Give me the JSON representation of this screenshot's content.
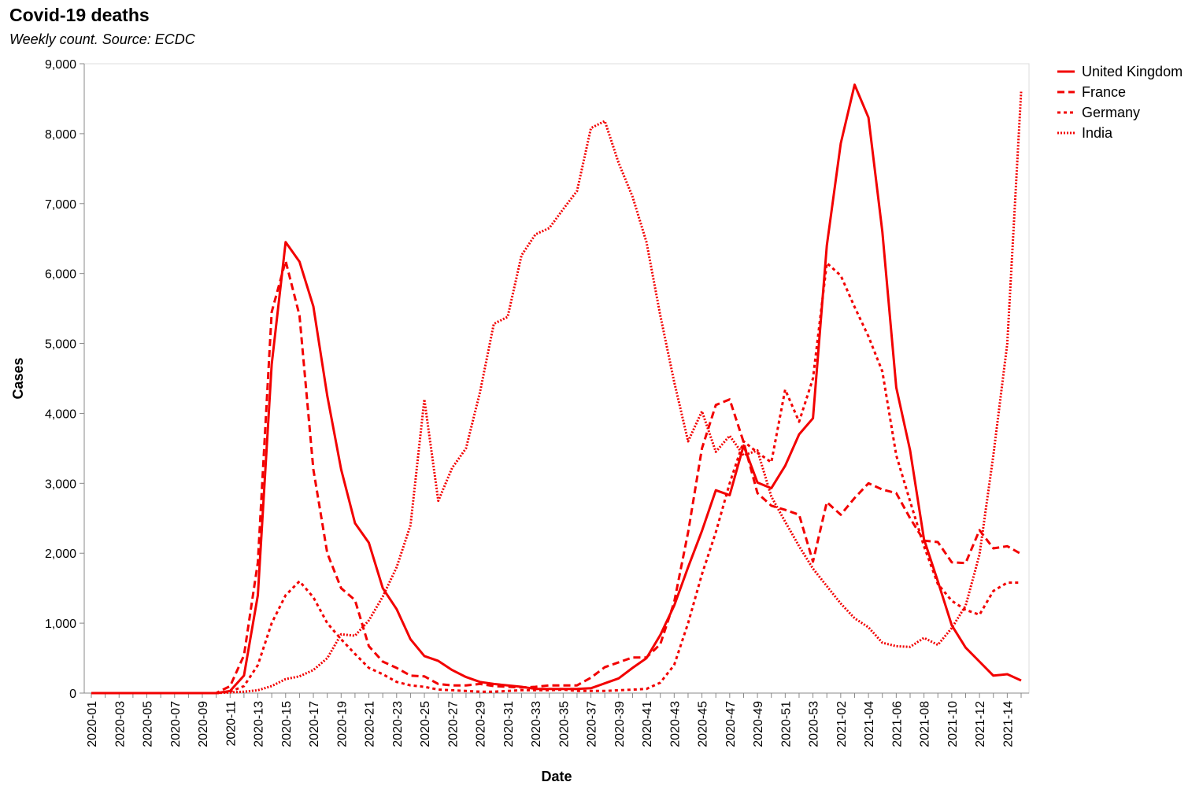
{
  "chart_data": {
    "type": "line",
    "title": "Covid-19 deaths",
    "subtitle": "Weekly count. Source: ECDC",
    "xlabel": "Date",
    "ylabel": "Cases",
    "ylim": [
      0,
      9000
    ],
    "yticks": [
      0,
      1000,
      2000,
      3000,
      4000,
      5000,
      6000,
      7000,
      8000,
      9000
    ],
    "ytick_labels": [
      "0",
      "1,000",
      "2,000",
      "3,000",
      "4,000",
      "5,000",
      "6,000",
      "7,000",
      "8,000",
      "9,000"
    ],
    "grid": false,
    "legend_position": "top-right",
    "line_color": "#f20000",
    "x": [
      "2020-01",
      "2020-02",
      "2020-03",
      "2020-04",
      "2020-05",
      "2020-06",
      "2020-07",
      "2020-08",
      "2020-09",
      "2020-10",
      "2020-11",
      "2020-12",
      "2020-13",
      "2020-14",
      "2020-15",
      "2020-16",
      "2020-17",
      "2020-18",
      "2020-19",
      "2020-20",
      "2020-21",
      "2020-22",
      "2020-23",
      "2020-24",
      "2020-25",
      "2020-26",
      "2020-27",
      "2020-28",
      "2020-29",
      "2020-30",
      "2020-31",
      "2020-32",
      "2020-33",
      "2020-34",
      "2020-35",
      "2020-36",
      "2020-37",
      "2020-38",
      "2020-39",
      "2020-40",
      "2020-41",
      "2020-42",
      "2020-43",
      "2020-44",
      "2020-45",
      "2020-46",
      "2020-47",
      "2020-48",
      "2020-49",
      "2020-50",
      "2020-51",
      "2020-52",
      "2020-53",
      "2021-01",
      "2021-02",
      "2021-03",
      "2021-04",
      "2021-05",
      "2021-06",
      "2021-07",
      "2021-08",
      "2021-09",
      "2021-10",
      "2021-11",
      "2021-12",
      "2021-13",
      "2021-14",
      "2021-15"
    ],
    "x_tick_labels": [
      "2020-01",
      "2020-03",
      "2020-05",
      "2020-07",
      "2020-09",
      "2020-11",
      "2020-13",
      "2020-15",
      "2020-17",
      "2020-19",
      "2020-21",
      "2020-23",
      "2020-25",
      "2020-27",
      "2020-29",
      "2020-31",
      "2020-33",
      "2020-35",
      "2020-37",
      "2020-39",
      "2020-41",
      "2020-43",
      "2020-45",
      "2020-47",
      "2020-49",
      "2020-51",
      "2020-53",
      "2021-02",
      "2021-04",
      "2021-06",
      "2021-08",
      "2021-10",
      "2021-12",
      "2021-14"
    ],
    "series": [
      {
        "name": "United Kingdom",
        "dash": "solid",
        "values": [
          0,
          0,
          0,
          0,
          0,
          0,
          0,
          0,
          0,
          0,
          30,
          250,
          1400,
          4700,
          6450,
          6170,
          5530,
          4250,
          3200,
          2430,
          2150,
          1500,
          1200,
          770,
          530,
          460,
          330,
          230,
          160,
          130,
          110,
          90,
          60,
          60,
          60,
          60,
          70,
          140,
          210,
          360,
          500,
          830,
          1250,
          1800,
          2320,
          2900,
          2830,
          3540,
          3010,
          2930,
          3250,
          3700,
          3930,
          6400,
          7860,
          8700,
          8230,
          6600,
          4370,
          3470,
          2200,
          1600,
          970,
          650,
          450,
          250,
          270,
          180
        ]
      },
      {
        "name": "France",
        "dash": "dashed",
        "values": [
          0,
          0,
          0,
          0,
          0,
          0,
          0,
          0,
          0,
          0,
          100,
          540,
          1870,
          5450,
          6180,
          5400,
          3200,
          2000,
          1500,
          1330,
          670,
          450,
          360,
          250,
          240,
          130,
          110,
          110,
          130,
          100,
          90,
          80,
          90,
          110,
          110,
          110,
          220,
          370,
          440,
          510,
          510,
          700,
          1300,
          2300,
          3500,
          4120,
          4200,
          3590,
          2860,
          2680,
          2620,
          2550,
          1880,
          2730,
          2550,
          2790,
          3000,
          2910,
          2860,
          2500,
          2180,
          2160,
          1870,
          1860,
          2330,
          2070,
          2100,
          1990
        ]
      },
      {
        "name": "Germany",
        "dash": "dotted",
        "values": [
          0,
          0,
          0,
          0,
          0,
          0,
          0,
          0,
          0,
          0,
          20,
          100,
          400,
          1000,
          1400,
          1600,
          1370,
          1000,
          770,
          560,
          360,
          270,
          160,
          110,
          90,
          50,
          40,
          30,
          20,
          20,
          30,
          40,
          40,
          40,
          50,
          30,
          30,
          30,
          40,
          50,
          60,
          150,
          400,
          1000,
          1700,
          2300,
          3000,
          3600,
          3440,
          3300,
          4340,
          3880,
          4500,
          6150,
          5970,
          5520,
          5100,
          4600,
          3400,
          2740,
          2100,
          1560,
          1320,
          1190,
          1120,
          1460,
          1580,
          1580
        ]
      },
      {
        "name": "India",
        "dash": "fine-dotted",
        "values": [
          0,
          0,
          0,
          0,
          0,
          0,
          0,
          0,
          0,
          0,
          10,
          20,
          40,
          100,
          200,
          240,
          330,
          500,
          840,
          820,
          1040,
          1380,
          1800,
          2400,
          4200,
          2750,
          3220,
          3500,
          4300,
          5280,
          5380,
          6260,
          6560,
          6650,
          6920,
          7180,
          8080,
          8180,
          7580,
          7100,
          6450,
          5400,
          4450,
          3600,
          4030,
          3450,
          3680,
          3400,
          3470,
          2810,
          2450,
          2100,
          1780,
          1530,
          1280,
          1070,
          940,
          720,
          670,
          660,
          790,
          690,
          930,
          1250,
          1980,
          3400,
          5000,
          8600
        ]
      }
    ]
  }
}
